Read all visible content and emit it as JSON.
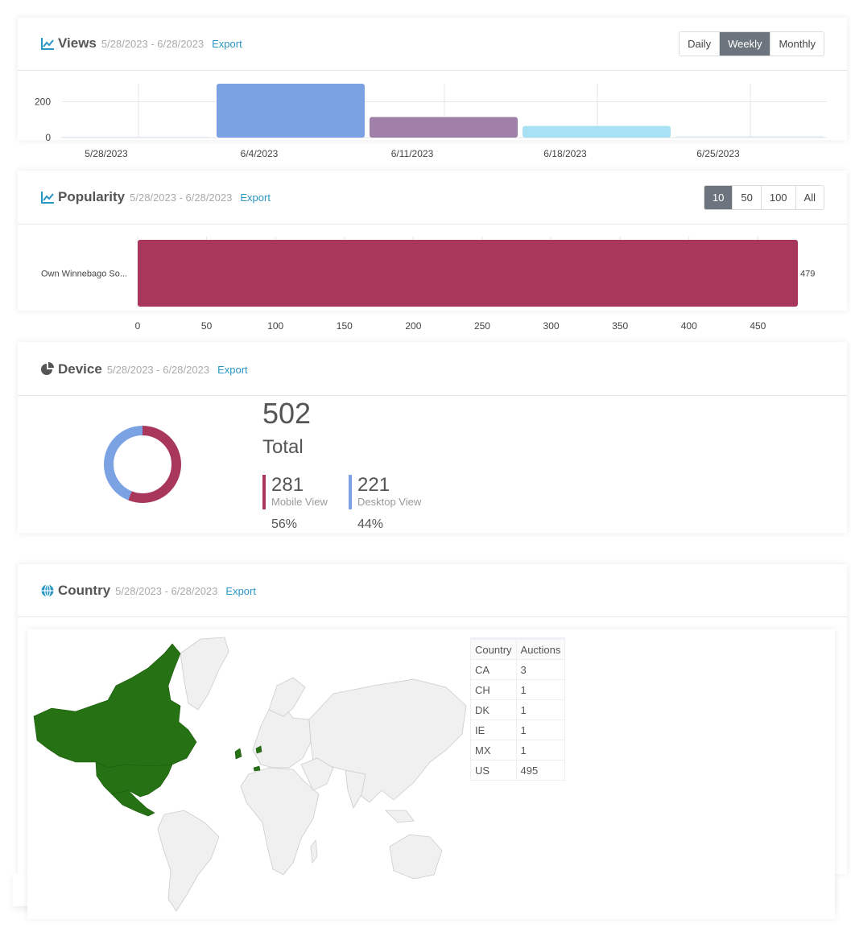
{
  "views": {
    "title": "Views",
    "range": "5/28/2023 - 6/28/2023",
    "export": "Export",
    "buttons": [
      "Daily",
      "Weekly",
      "Monthly"
    ],
    "active_button": "Weekly"
  },
  "popularity": {
    "title": "Popularity",
    "range": "5/28/2023 - 6/28/2023",
    "export": "Export",
    "buttons": [
      "10",
      "50",
      "100",
      "All"
    ],
    "active_button": "10"
  },
  "device": {
    "title": "Device",
    "range": "5/28/2023 - 6/28/2023",
    "export": "Export",
    "total": "502",
    "total_label": "Total",
    "mobile": {
      "value": "281",
      "label": "Mobile View",
      "pct": "56%",
      "color": "#a8375b"
    },
    "desktop": {
      "value": "221",
      "label": "Desktop View",
      "pct": "44%",
      "color": "#7ba3e3"
    }
  },
  "country": {
    "title": "Country",
    "range": "5/28/2023 - 6/28/2023",
    "export": "Export",
    "table": {
      "headers": [
        "Country",
        "Auctions"
      ],
      "rows": [
        [
          "CA",
          "3"
        ],
        [
          "CH",
          "1"
        ],
        [
          "DK",
          "1"
        ],
        [
          "IE",
          "1"
        ],
        [
          "MX",
          "1"
        ],
        [
          "US",
          "495"
        ]
      ]
    },
    "map_colors": {
      "highlight": "#267114",
      "base": "#f0f0f0",
      "border": "#cccccc"
    }
  },
  "chart_data": [
    {
      "type": "bar",
      "categories": [
        "5/28/2023",
        "6/4/2023",
        "6/11/2023",
        "6/18/2023",
        "6/25/2023"
      ],
      "values": [
        5,
        300,
        115,
        65,
        8
      ],
      "colors": [
        "#dfe8f4",
        "#7ba3e3",
        "#a07fa8",
        "#a8e1f3",
        "#dfe8f4"
      ],
      "yticks": [
        0,
        200
      ],
      "ylim": [
        0,
        300
      ]
    },
    {
      "type": "bar",
      "orientation": "horizontal",
      "categories": [
        "Own Winnebago So..."
      ],
      "values": [
        479
      ],
      "data_labels": [
        "479"
      ],
      "color": "#a8375b",
      "xticks": [
        0,
        50,
        100,
        150,
        200,
        250,
        300,
        350,
        400,
        450
      ],
      "xlim": [
        0,
        479
      ]
    },
    {
      "type": "pie",
      "labels": [
        "Mobile View",
        "Desktop View"
      ],
      "values": [
        281,
        221
      ],
      "colors": [
        "#a8375b",
        "#7ba3e3"
      ]
    }
  ]
}
